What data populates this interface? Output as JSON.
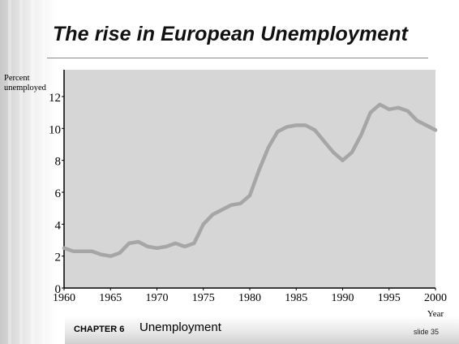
{
  "slide": {
    "title": "The rise in European Unemployment",
    "footer": {
      "chapter": "CHAPTER 6",
      "topic": "Unemployment",
      "slide_number": "slide 35"
    }
  },
  "colors": {
    "plot_background": "#d6d6d6",
    "line": "#a6a6a6",
    "axis": "#000000"
  },
  "chart_data": {
    "type": "line",
    "title": "",
    "ylabel": "Percent unemployed",
    "xlabel": "Year",
    "xlim": [
      1960,
      2000
    ],
    "ylim": [
      0,
      12
    ],
    "x_ticks": [
      1960,
      1965,
      1970,
      1975,
      1980,
      1985,
      1990,
      1995,
      2000
    ],
    "x_tick_labels": [
      "1960",
      "1965",
      "1970",
      "1975",
      "1980",
      "1985",
      "1990",
      "1995",
      "2000"
    ],
    "y_ticks": [
      0,
      2,
      4,
      6,
      8,
      10,
      12
    ],
    "y_tick_labels": [
      "0",
      "2",
      "4",
      "6",
      "8",
      "10",
      "12"
    ],
    "grid": false,
    "series": [
      {
        "x": [
          1960,
          1961,
          1962,
          1963,
          1964,
          1965,
          1966,
          1967,
          1968,
          1969,
          1970,
          1971,
          1972,
          1973,
          1974,
          1975,
          1976,
          1977,
          1978,
          1979,
          1980,
          1981,
          1982,
          1983,
          1984,
          1985,
          1986,
          1987,
          1988,
          1989,
          1990,
          1991,
          1992,
          1993,
          1994,
          1995,
          1996,
          1997,
          1998,
          1999,
          2000
        ],
        "values": [
          2.5,
          2.3,
          2.3,
          2.3,
          2.1,
          2.0,
          2.2,
          2.8,
          2.9,
          2.6,
          2.5,
          2.6,
          2.8,
          2.6,
          2.8,
          4.0,
          4.6,
          4.9,
          5.2,
          5.3,
          5.8,
          7.4,
          8.8,
          9.8,
          10.1,
          10.2,
          10.2,
          9.9,
          9.2,
          8.5,
          8.0,
          8.5,
          9.6,
          11.0,
          11.5,
          11.2,
          11.3,
          11.1,
          10.5,
          10.2,
          9.9
        ]
      }
    ]
  }
}
